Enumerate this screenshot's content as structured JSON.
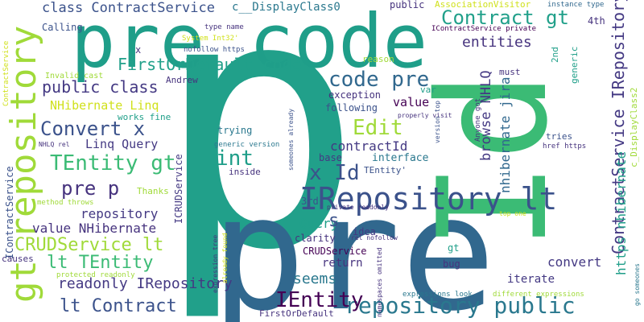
{
  "colors": {
    "background": "#ffffff",
    "teal": "#21a08a",
    "teal2": "#1f9e89",
    "green": "#3bbb75",
    "lime": "#a0da39",
    "yellow": "#d0e11c",
    "blue": "#3b528b",
    "blue2": "#31688e",
    "indigo": "#443983",
    "purple": "#46337e",
    "dark": "#440154",
    "cyan": "#2a788e"
  },
  "words": [
    {
      "id": "p",
      "text": "p"
    },
    {
      "id": "pre-big",
      "text": "pre"
    },
    {
      "id": "pre-code",
      "text": "pre code"
    },
    {
      "id": "id",
      "text": "Id"
    },
    {
      "id": "gt-repository",
      "text": "gt repository"
    },
    {
      "id": "irepository-lt",
      "text": "IRepository lt"
    },
    {
      "id": "repository-public",
      "text": "repository public"
    },
    {
      "id": "contract-gt",
      "text": "Contract gt"
    },
    {
      "id": "firstordefault-code",
      "text": "FirstOrDefault code"
    },
    {
      "id": "code-pre",
      "text": "code pre"
    },
    {
      "id": "tentity-gt",
      "text": "TEntity gt"
    },
    {
      "id": "convert-x",
      "text": "Convert x"
    },
    {
      "id": "pre-p",
      "text": "pre p"
    },
    {
      "id": "crudservice-lt",
      "text": "CRUDService lt"
    },
    {
      "id": "lt-tentity",
      "text": "lt TEntity"
    },
    {
      "id": "lt-contract",
      "text": "lt Contract"
    },
    {
      "id": "readonly-irepository",
      "text": "readonly IRepository"
    },
    {
      "id": "ientity",
      "text": "IEntity"
    },
    {
      "id": "x-id",
      "text": "x Id"
    },
    {
      "id": "public-class",
      "text": "public class"
    },
    {
      "id": "contractservice-irepository",
      "text": "ContractService IRepository"
    },
    {
      "id": "https-nhibernate",
      "text": "https nhibernate"
    },
    {
      "id": "class-contractservice",
      "text": "class ContractService"
    },
    {
      "id": "c-displayclass0",
      "text": "c__DisplayClass0"
    },
    {
      "id": "entities",
      "text": "entities"
    },
    {
      "id": "edit",
      "text": "Edit"
    },
    {
      "id": "int",
      "text": "int"
    },
    {
      "id": "seems",
      "text": "seems"
    },
    {
      "id": "nhibernate-linq",
      "text": "NHibernate Linq"
    },
    {
      "id": "linq-query",
      "text": "Linq Query"
    },
    {
      "id": "contractid",
      "text": "contractId"
    },
    {
      "id": "browse-nhlq",
      "text": "browse NHLQ"
    },
    {
      "id": "nhibernate-jira",
      "text": "nhibernate jira"
    },
    {
      "id": "value-nhibernate",
      "text": "value NHibernate"
    },
    {
      "id": "repository",
      "text": "repository"
    },
    {
      "id": "query",
      "text": "Query"
    },
    {
      "id": "s",
      "text": "s"
    },
    {
      "id": "convert",
      "text": "convert"
    },
    {
      "id": "return",
      "text": "return"
    },
    {
      "id": "interface",
      "text": "interface"
    },
    {
      "id": "iterate",
      "text": "iterate"
    },
    {
      "id": "value",
      "text": "value"
    },
    {
      "id": "calling",
      "text": "Calling"
    },
    {
      "id": "exception",
      "text": "exception"
    },
    {
      "id": "following",
      "text": "following"
    },
    {
      "id": "public",
      "text": "public"
    },
    {
      "id": "associationvisitor",
      "text": "AssociationVisitor"
    },
    {
      "id": "instance-type",
      "text": "instance type"
    },
    {
      "id": "icontractservice-private",
      "text": "IContractService private"
    },
    {
      "id": "system-int32",
      "text": "System Int32'"
    },
    {
      "id": "type-name",
      "text": "type name"
    },
    {
      "id": "nofollow-https",
      "text": "nofollow https"
    },
    {
      "id": "invalid-cast",
      "text": "Invalid cast"
    },
    {
      "id": "andrew",
      "text": "Andrew"
    },
    {
      "id": "works-fine",
      "text": "works fine"
    },
    {
      "id": "reason",
      "text": "reason"
    },
    {
      "id": "2nd",
      "text": "2nd"
    },
    {
      "id": "must",
      "text": "must"
    },
    {
      "id": "4th",
      "text": "4th"
    },
    {
      "id": "generic",
      "text": "generic"
    },
    {
      "id": "c-displayclass2",
      "text": "c_DisplayClass2"
    },
    {
      "id": "var",
      "text": "var"
    },
    {
      "id": "properly-visit",
      "text": "properly visit"
    },
    {
      "id": "tries",
      "text": "tries"
    },
    {
      "id": "href-https",
      "text": "href https"
    },
    {
      "id": "anyone-got",
      "text": "Anyone got"
    },
    {
      "id": "trying",
      "text": "trying"
    },
    {
      "id": "generic-version",
      "text": "generic version"
    },
    {
      "id": "base",
      "text": "base"
    },
    {
      "id": "tentity-quote",
      "text": "TEntity'"
    },
    {
      "id": "private-readonly",
      "text": "private readonly"
    },
    {
      "id": "inside",
      "text": "inside"
    },
    {
      "id": "thanks",
      "text": "Thanks"
    },
    {
      "id": "3rd",
      "text": "3rd"
    },
    {
      "id": "method-throws",
      "text": "method throws"
    },
    {
      "id": "clarity",
      "text": "clarity"
    },
    {
      "id": "idea",
      "text": "idea"
    },
    {
      "id": "crudservice",
      "text": "CRUDService"
    },
    {
      "id": "gt",
      "text": "gt"
    },
    {
      "id": "bug",
      "text": "bug"
    },
    {
      "id": "rel-nofollow",
      "text": "rel nofollow"
    },
    {
      "id": "top-one",
      "text": "top one"
    },
    {
      "id": "causes",
      "text": "causes"
    },
    {
      "id": "protected-readonly",
      "text": "protected readonly"
    },
    {
      "id": "expressions-look",
      "text": "expressions look"
    },
    {
      "id": "different-expressions",
      "text": "different expressions"
    },
    {
      "id": "firstordefault",
      "text": "FirstOrDefault"
    },
    {
      "id": "go-someones",
      "text": "go someones"
    },
    {
      "id": "icontractservice",
      "text": "IContractService"
    },
    {
      "id": "icrudservice",
      "text": "ICRUDService"
    },
    {
      "id": "expression-tree",
      "text": "expression tree"
    },
    {
      "id": "already-found",
      "text": "already found"
    },
    {
      "id": "someones-already",
      "text": "someones already"
    },
    {
      "id": "version-top",
      "text": "version top"
    },
    {
      "id": "namespaces-omitted",
      "text": "namespaces omitted"
    },
    {
      "id": "nhlq-rel",
      "text": "NHLQ rel"
    },
    {
      "id": "x",
      "text": "x"
    },
    {
      "id": "contractservice",
      "text": "ContractService"
    }
  ]
}
